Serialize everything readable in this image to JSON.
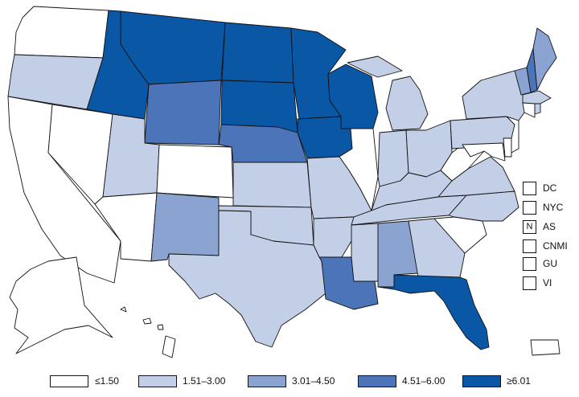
{
  "colors": {
    "c1": "#ffffff",
    "c2": "#c3cfe6",
    "c3": "#8aa3d1",
    "c4": "#4c74b9",
    "c5": "#0a57a6"
  },
  "legend": [
    {
      "label": "≤1.50",
      "class": "c1"
    },
    {
      "label": "1.51–3.00",
      "class": "c2"
    },
    {
      "label": "3.01–4.50",
      "class": "c3"
    },
    {
      "label": "4.51–6.00",
      "class": "c4"
    },
    {
      "label": "≥6.01",
      "class": "c5"
    }
  ],
  "jurisdictions": [
    {
      "label": "DC",
      "mark": "",
      "class": "c1"
    },
    {
      "label": "NYC",
      "mark": "",
      "class": "c1"
    },
    {
      "label": "AS",
      "mark": "N",
      "class": "c1"
    },
    {
      "label": "CNMI",
      "mark": "",
      "class": "c1"
    },
    {
      "label": "GU",
      "mark": "",
      "class": "c1"
    },
    {
      "label": "VI",
      "mark": "",
      "class": "c1"
    }
  ],
  "states": {
    "WA": "c1",
    "OR": "c2",
    "CA": "c1",
    "NV": "c1",
    "ID": "c5",
    "MT": "c5",
    "WY": "c4",
    "UT": "c2",
    "AZ": "c1",
    "CO": "c1",
    "NM": "c3",
    "ND": "c5",
    "SD": "c5",
    "NE": "c4",
    "KS": "c2",
    "OK": "c2",
    "TX": "c2",
    "MN": "c5",
    "IA": "c5",
    "MO": "c2",
    "AR": "c2",
    "LA": "c4",
    "WI": "c5",
    "IL": "c1",
    "MI": "c2",
    "IN": "c2",
    "OH": "c2",
    "KY": "c2",
    "TN": "c2",
    "MS": "c2",
    "AL": "c3",
    "GA": "c2",
    "FL": "c5",
    "SC": "c1",
    "NC": "c2",
    "VA": "c2",
    "WV": "c1",
    "MD": "c1",
    "DE": "c1",
    "PA": "c2",
    "NJ": "c1",
    "NY": "c2",
    "CT": "c1",
    "RI": "c2",
    "MA": "c2",
    "VT": "c3",
    "NH": "c4",
    "ME": "c3",
    "AK": "c1",
    "HI": "c1",
    "PR": "c1"
  }
}
